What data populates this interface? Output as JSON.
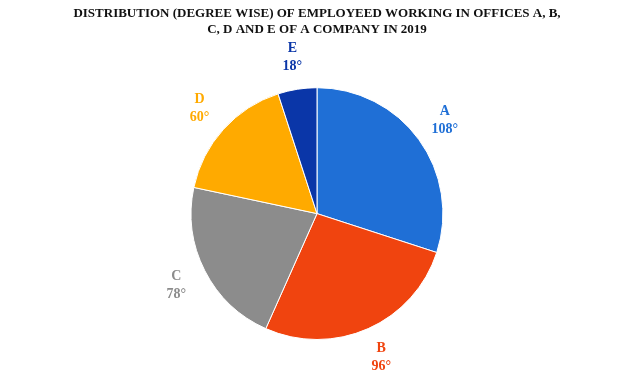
{
  "chart_data": {
    "type": "pie",
    "title": "DISTRIBUTION (DEGREE WISE) OF EMPLOYEED WORKING IN OFFICES A, B, C, D AND E OF A COMPANY IN 2019",
    "categories": [
      "A",
      "B",
      "C",
      "D",
      "E"
    ],
    "values": [
      108,
      96,
      78,
      60,
      18
    ],
    "value_labels": [
      "108°",
      "96°",
      "78°",
      "60°",
      "18°"
    ],
    "colors": [
      "#1f6fd6",
      "#f0440f",
      "#8c8c8c",
      "#ffaa00",
      "#0a36a8"
    ],
    "data_labels": true
  }
}
